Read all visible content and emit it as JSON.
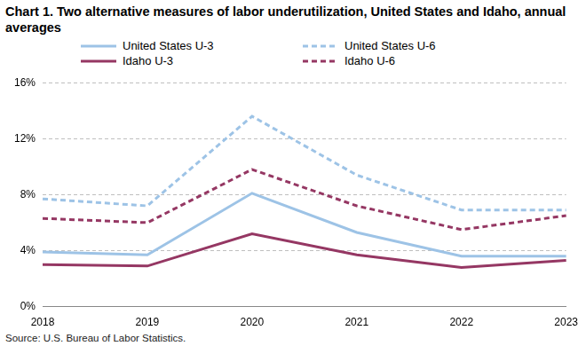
{
  "chart_data": {
    "type": "line",
    "title": "Chart 1. Two alternative measures of labor underutilization, United States and Idaho, annual averages",
    "source": "Source: U.S. Bureau of Labor Statistics.",
    "categories": [
      "2018",
      "2019",
      "2020",
      "2021",
      "2022",
      "2023"
    ],
    "series": [
      {
        "name": "United States U-3",
        "color": "#9dc3e6",
        "line_style": "solid",
        "values": [
          3.9,
          3.7,
          8.1,
          5.3,
          3.6,
          3.6
        ]
      },
      {
        "name": "United States U-6",
        "color": "#9dc3e6",
        "line_style": "dashed",
        "values": [
          7.7,
          7.2,
          13.6,
          9.4,
          6.9,
          6.9
        ]
      },
      {
        "name": "Idaho U-3",
        "color": "#953763",
        "line_style": "solid",
        "values": [
          3.0,
          2.9,
          5.2,
          3.7,
          2.8,
          3.3
        ]
      },
      {
        "name": "Idaho U-6",
        "color": "#953763",
        "line_style": "dashed",
        "values": [
          6.3,
          6.0,
          9.8,
          7.2,
          5.5,
          6.5
        ]
      }
    ],
    "ylim": [
      0,
      16
    ],
    "yticks": [
      {
        "value": 0,
        "label": "0%"
      },
      {
        "value": 4,
        "label": "4%"
      },
      {
        "value": 8,
        "label": "8%"
      },
      {
        "value": 12,
        "label": "12%"
      },
      {
        "value": 16,
        "label": "16%"
      }
    ],
    "grid": true,
    "legend": "top"
  }
}
